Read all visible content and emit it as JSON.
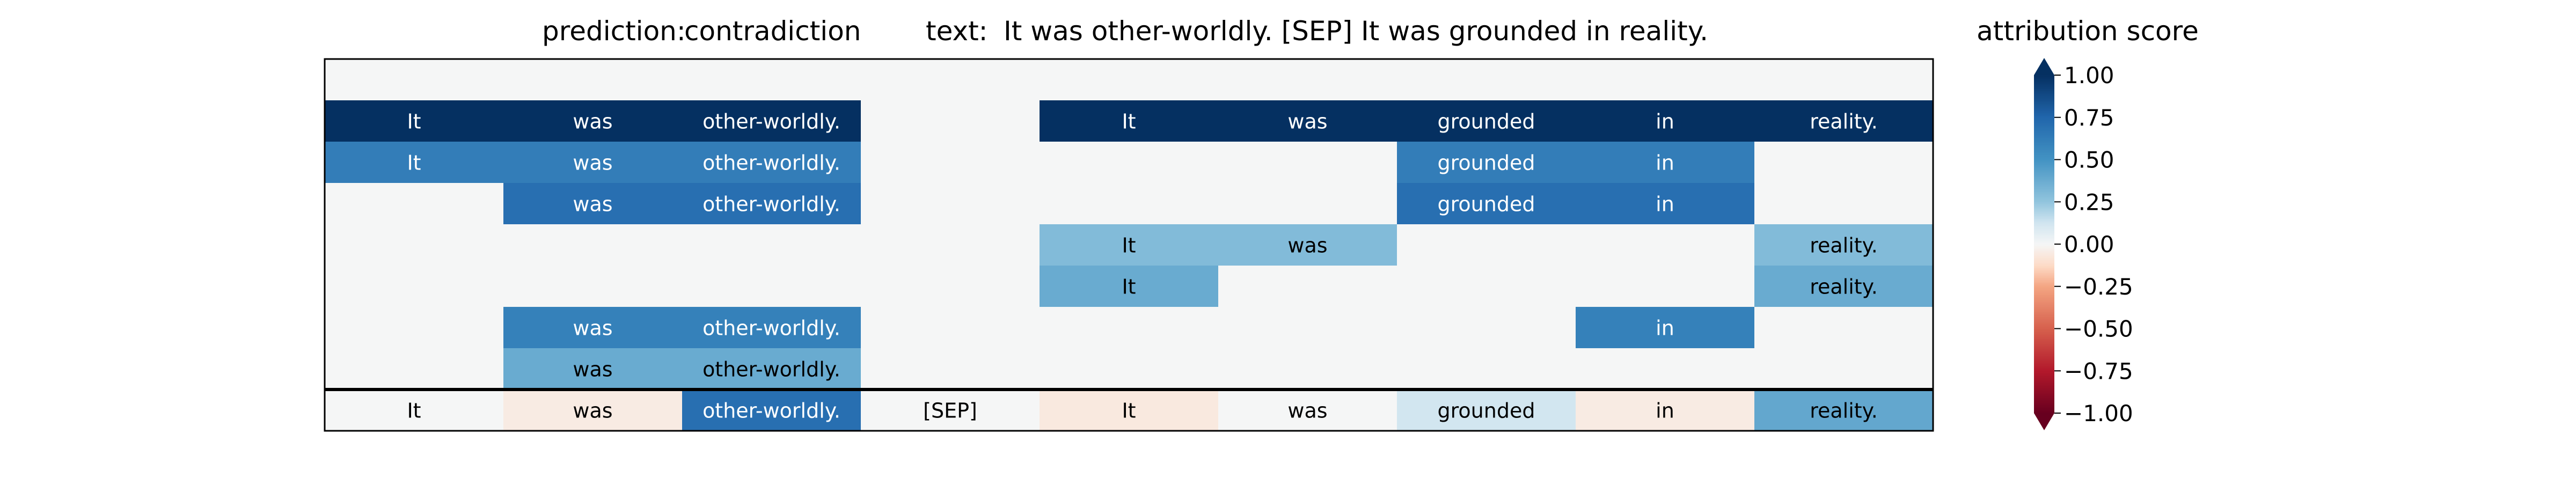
{
  "chart_data": {
    "type": "heatmap",
    "title": {
      "prediction_label": "prediction:",
      "prediction_value": "contradiction",
      "text_label": "text:",
      "text_value": "It was other-worldly. [SEP] It was grounded in reality."
    },
    "tokens": [
      "It",
      "was",
      "other-worldly.",
      "[SEP]",
      "It",
      "was",
      "grounded",
      "in",
      "reality."
    ],
    "rows": [
      [
        0,
        0,
        0,
        0,
        0,
        0,
        0,
        0,
        0
      ],
      [
        1.0,
        1.0,
        1.0,
        0,
        1.0,
        1.0,
        1.0,
        1.0,
        1.0
      ],
      [
        0.62,
        0.62,
        0.62,
        0,
        0,
        0,
        0.62,
        0.62,
        0
      ],
      [
        0,
        0.7,
        0.7,
        0,
        0,
        0,
        0.7,
        0.7,
        0
      ],
      [
        0,
        0,
        0,
        0,
        0.3,
        0.3,
        0,
        0,
        0.3
      ],
      [
        0,
        0,
        0,
        0,
        0.38,
        0,
        0,
        0,
        0.38
      ],
      [
        0,
        0.6,
        0.6,
        0,
        0,
        0,
        0,
        0.6,
        0
      ],
      [
        0,
        0.38,
        0.38,
        0,
        0,
        0,
        0,
        0,
        0
      ],
      [
        0,
        -0.05,
        0.7,
        0,
        -0.06,
        0,
        0.12,
        -0.05,
        0.4
      ]
    ],
    "colorbar": {
      "title": "attribution score",
      "ticks": [
        1.0,
        0.75,
        0.5,
        0.25,
        0.0,
        -0.25,
        -0.5,
        -0.75,
        -1.0
      ],
      "tick_labels": [
        "1.00",
        "0.75",
        "0.50",
        "0.25",
        "0.00",
        "−0.25",
        "−0.50",
        "−0.75",
        "−1.00"
      ],
      "colormap": "RdBu",
      "range": [
        -1,
        1
      ]
    },
    "grid": false
  }
}
